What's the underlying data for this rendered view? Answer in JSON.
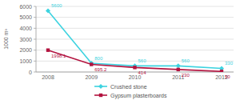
{
  "chart_data": {
    "type": "line",
    "y_label": "1000 m³",
    "categories": [
      "2008",
      "2009",
      "2010",
      "2011",
      "2012"
    ],
    "series": [
      {
        "name": "Crushed stone",
        "color": "#3dd3e0",
        "marker": "diamond",
        "values": [
          5600,
          800,
          560,
          560,
          330
        ]
      },
      {
        "name": "Gypsum plasterboards",
        "color": "#b3133f",
        "marker": "square",
        "values": [
          1998.1,
          695.2,
          414,
          230,
          50
        ]
      }
    ],
    "ylim": [
      0,
      6000
    ],
    "yticks": [
      0,
      1000,
      2000,
      3000,
      4000,
      5000,
      6000
    ],
    "grid": true,
    "legend": "bottom",
    "data_labels": true
  }
}
